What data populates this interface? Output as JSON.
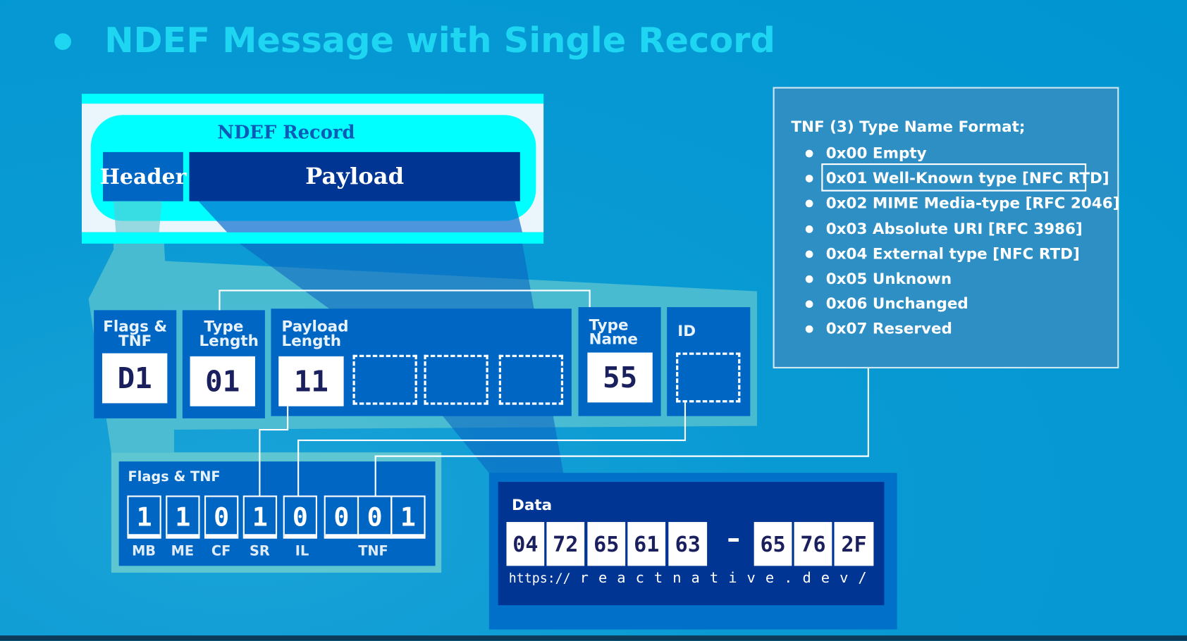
{
  "title": "NDEF Message with Single Record",
  "record": {
    "label": "NDEF Record",
    "header": "Header",
    "payload": "Payload"
  },
  "fields": [
    {
      "label": "Flags & TNF",
      "value": "D1"
    },
    {
      "label": "Type Length",
      "value": "01"
    },
    {
      "label": "Payload Length",
      "value": "11"
    },
    {
      "label": "Type Name",
      "value": "55"
    },
    {
      "label": "ID",
      "value": ""
    }
  ],
  "flags": {
    "title": "Flags & TNF",
    "bits": [
      "1",
      "1",
      "0",
      "1",
      "0",
      "0",
      "0",
      "1"
    ],
    "labels": [
      "MB",
      "ME",
      "CF",
      "SR",
      "IL",
      "TNF"
    ]
  },
  "data": {
    "title": "Data",
    "bytes_start": [
      "04",
      "72",
      "65",
      "61",
      "63"
    ],
    "ellipsis": "····",
    "bytes_end": [
      "65",
      "76",
      "2F"
    ],
    "decoded_prefix": "https://",
    "decoded": [
      "r",
      "e",
      "a",
      "c",
      "t",
      "n",
      "a",
      "t",
      "i",
      "v",
      "e",
      ".",
      "d",
      "e",
      "v",
      "/"
    ]
  },
  "tnf": {
    "title": "TNF (3) Type Name Format;",
    "items": [
      "0x00 Empty",
      "0x01 Well-Known type [NFC RTD]",
      "0x02 MIME Media-type [RFC 2046]",
      "0x03 Absolute URI [RFC 3986]",
      "0x04 External type [NFC RTD]",
      "0x05 Unknown",
      "0x06 Unchanged",
      "0x07 Reserved"
    ],
    "highlighted_index": 1
  },
  "colors": {
    "background": "#0099d4",
    "title": "#1ed6f2",
    "cyan": "#00ffff",
    "field_blue": "#0066c4",
    "dark_blue": "#003594",
    "teal": "#5ec6d0",
    "tnf_panel": "#2d8fc4"
  }
}
